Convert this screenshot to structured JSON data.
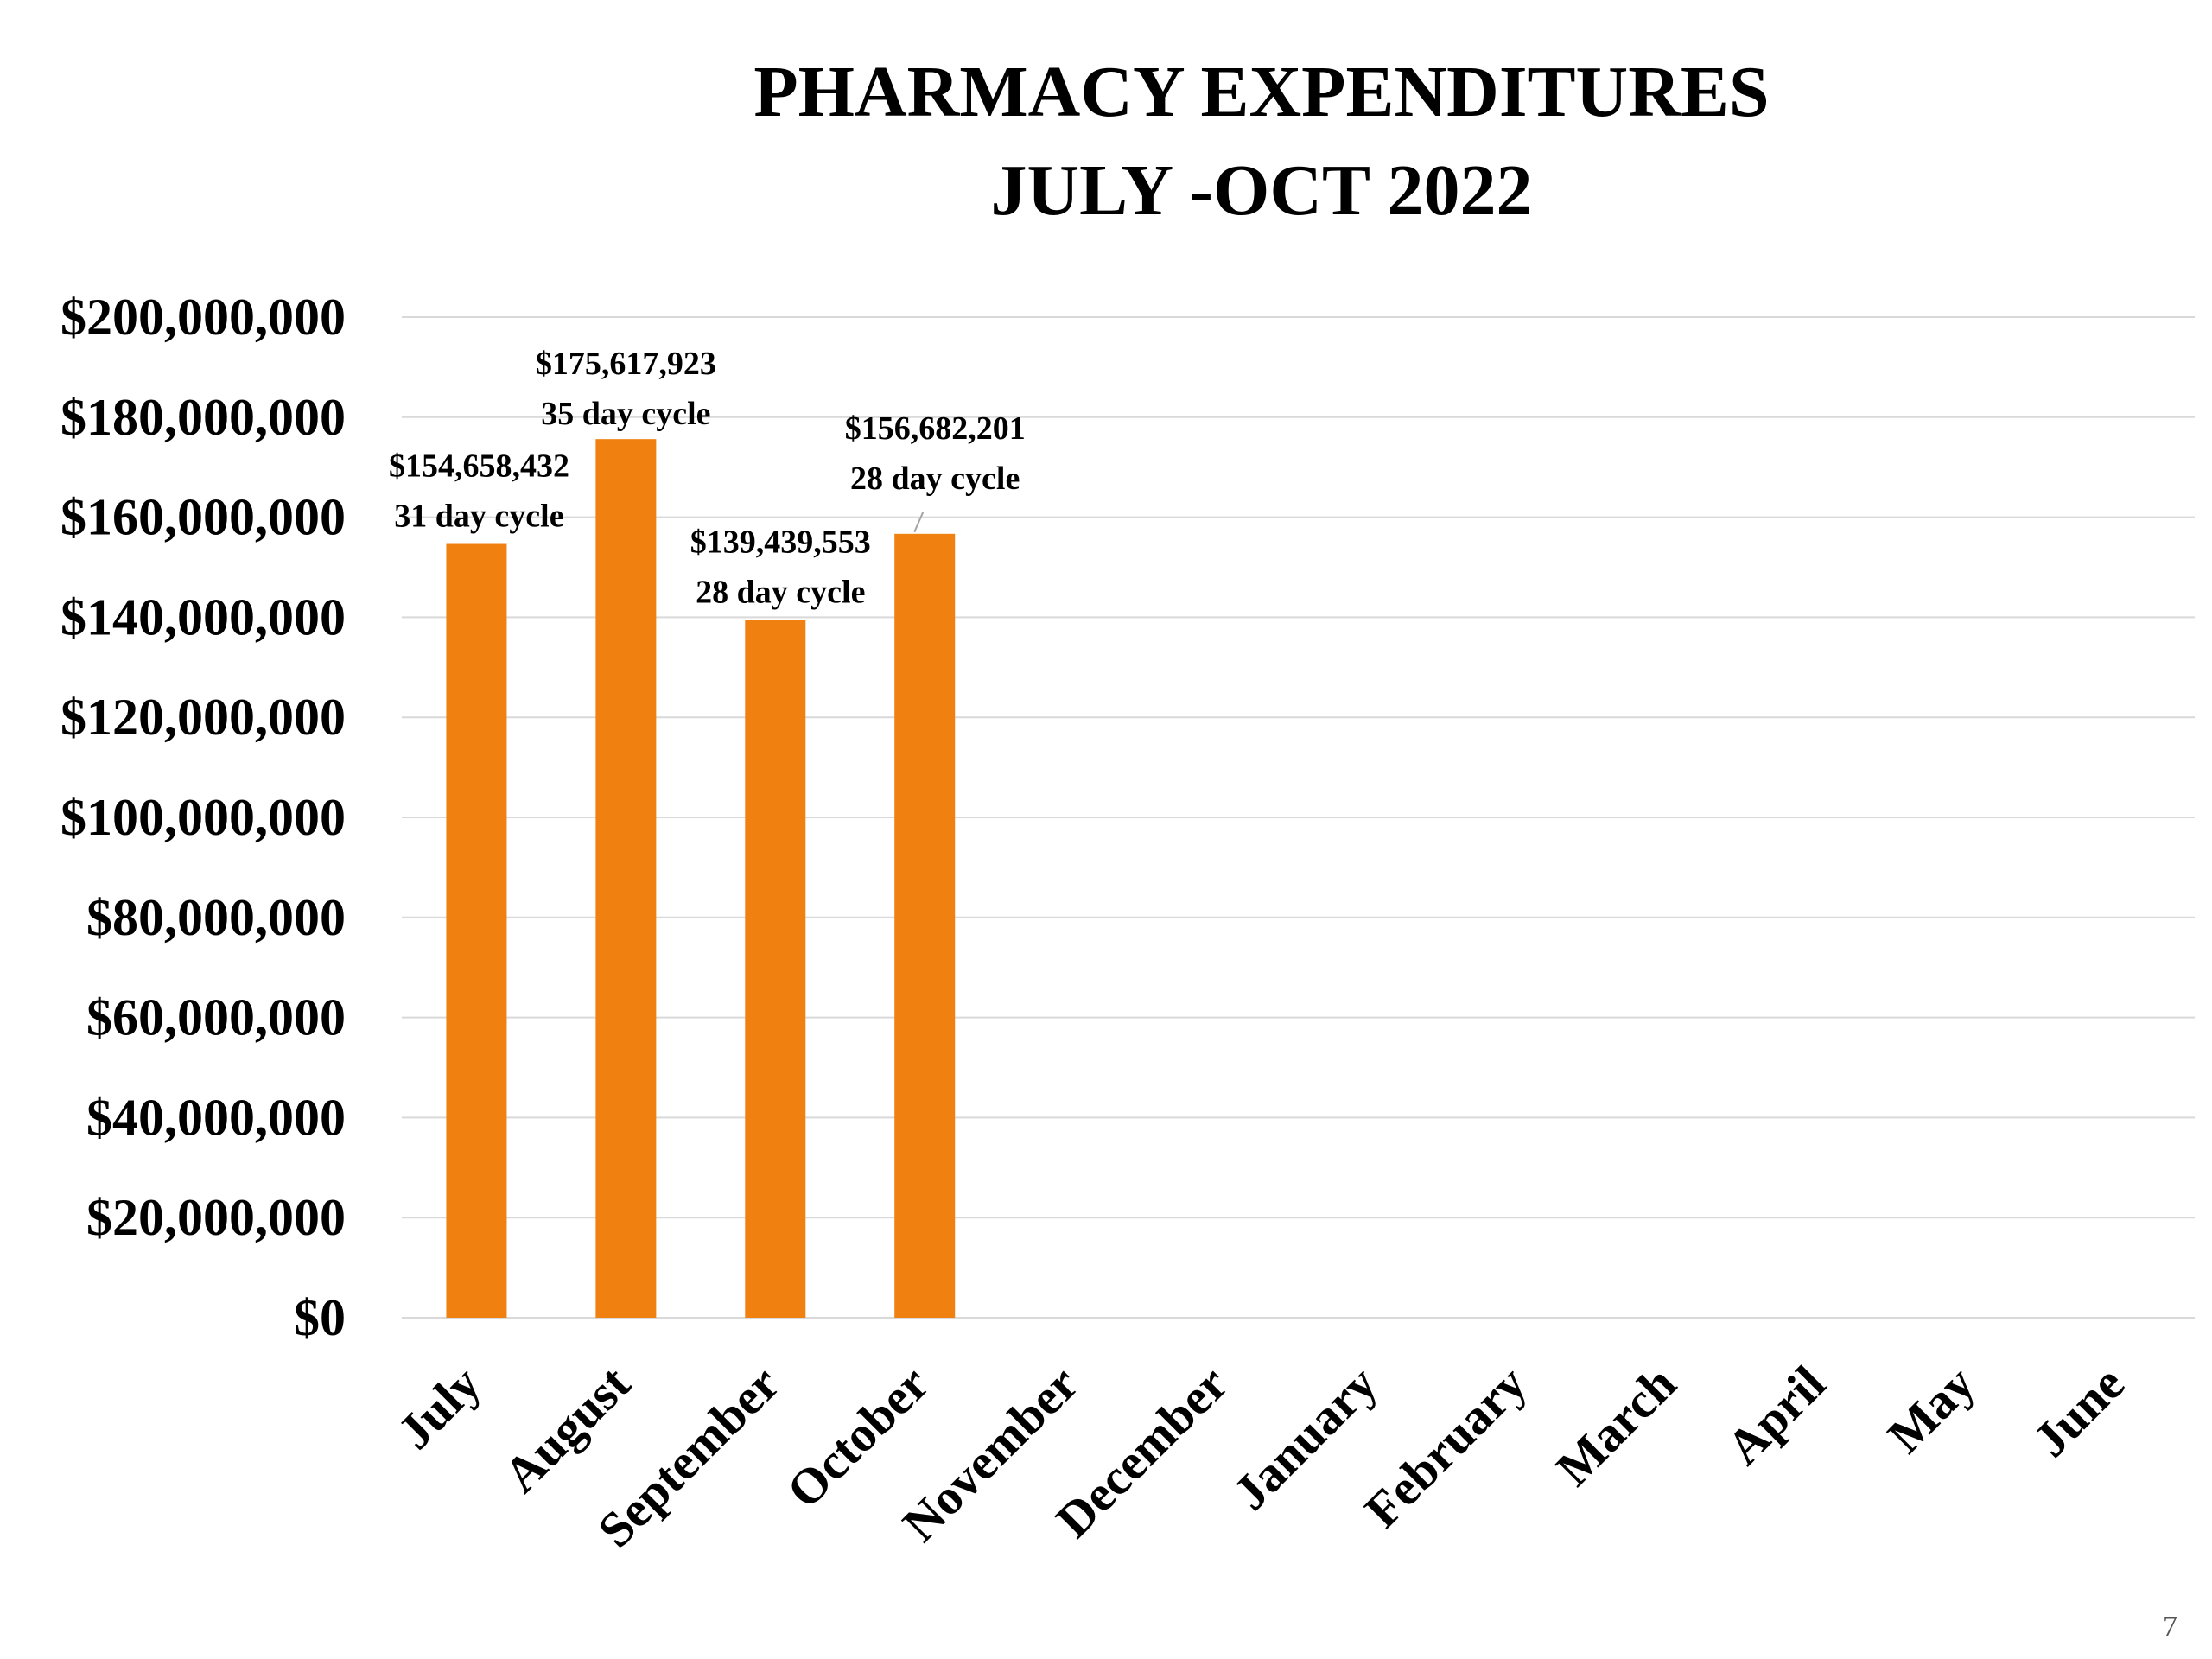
{
  "slide": {
    "title_line_1": "PHARMACY EXPENDITURES",
    "title_line_2": "JULY -OCT 2022",
    "page_number": "7"
  },
  "chart_data": {
    "type": "bar",
    "title": "PHARMACY EXPENDITURES JULY -OCT 2022",
    "xlabel": "",
    "ylabel": "",
    "categories": [
      "July",
      "August",
      "September",
      "October",
      "November",
      "December",
      "January",
      "February",
      "March",
      "April",
      "May",
      "June"
    ],
    "values": [
      154658432,
      175617923,
      139439553,
      156682201,
      null,
      null,
      null,
      null,
      null,
      null,
      null,
      null
    ],
    "data_labels": [
      [
        "$154,658,432",
        "31 day cycle"
      ],
      [
        "$175,617,923",
        "35 day cycle"
      ],
      [
        "$139,439,553",
        "28 day cycle"
      ],
      [
        "$156,682,201",
        "28 day cycle"
      ],
      null,
      null,
      null,
      null,
      null,
      null,
      null,
      null
    ],
    "ylim": [
      0,
      200000000
    ],
    "y_ticks": [
      0,
      20000000,
      40000000,
      60000000,
      80000000,
      100000000,
      120000000,
      140000000,
      160000000,
      180000000,
      200000000
    ],
    "y_tick_labels": [
      "$0",
      "$20,000,000",
      "$40,000,000",
      "$60,000,000",
      "$80,000,000",
      "$100,000,000",
      "$120,000,000",
      "$140,000,000",
      "$160,000,000",
      "$180,000,000",
      "$200,000,000"
    ],
    "grid": true,
    "legend": "none",
    "bar_color": "#F0800F",
    "grid_color": "#D9D9D9"
  }
}
